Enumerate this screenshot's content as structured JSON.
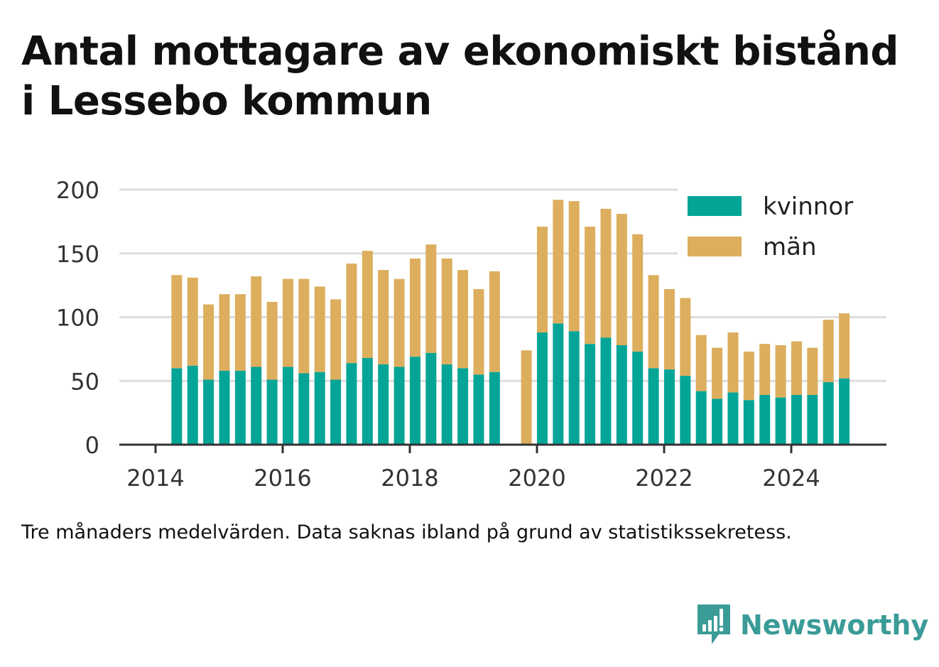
{
  "title_line1": "Antal mottagare av ekonomiskt bistånd",
  "title_line2": "i Lessebo kommun",
  "footnote": "Tre månaders medelvärden. Data saknas ibland på grund av statistikssekretess.",
  "brand": {
    "name": "Newsworthy",
    "icon": "newsworthy-logo-icon"
  },
  "colors": {
    "kvinnor": "#04a597",
    "man": "#dcae5d",
    "grid": "#dddddd",
    "axis": "#333333",
    "brand": "#3a9b97"
  },
  "chart_data": {
    "type": "bar",
    "stacked": true,
    "x_ticks": [
      "2014",
      "2016",
      "2018",
      "2020",
      "2022",
      "2024"
    ],
    "y_ticks": [
      0,
      50,
      100,
      150,
      200
    ],
    "ylim": [
      0,
      200
    ],
    "grid": true,
    "legend_position": "top-right",
    "categories": [
      "2014-05",
      "2014-08",
      "2014-11",
      "2015-02",
      "2015-05",
      "2015-08",
      "2015-11",
      "2016-02",
      "2016-05",
      "2016-08",
      "2016-11",
      "2017-02",
      "2017-05",
      "2017-08",
      "2017-11",
      "2018-02",
      "2018-05",
      "2018-08",
      "2018-11",
      "2019-02",
      "2019-05",
      "2019-08",
      "2019-11",
      "2020-02",
      "2020-05",
      "2020-08",
      "2020-11",
      "2021-02",
      "2021-05",
      "2021-08",
      "2021-11",
      "2022-02",
      "2022-05",
      "2022-08",
      "2022-11",
      "2023-02",
      "2023-05",
      "2023-08",
      "2023-11",
      "2024-02",
      "2024-05",
      "2024-08",
      "2024-11"
    ],
    "series": [
      {
        "name": "kvinnor",
        "values": [
          60,
          62,
          51,
          58,
          58,
          61,
          51,
          61,
          56,
          57,
          51,
          64,
          68,
          63,
          61,
          69,
          72,
          63,
          60,
          55,
          57,
          null,
          0,
          88,
          95,
          89,
          79,
          84,
          78,
          73,
          60,
          59,
          54,
          42,
          36,
          41,
          35,
          39,
          37,
          39,
          39,
          49,
          52
        ]
      },
      {
        "name": "män",
        "values": [
          73,
          69,
          59,
          60,
          60,
          71,
          61,
          69,
          74,
          67,
          63,
          78,
          84,
          74,
          69,
          77,
          85,
          83,
          77,
          67,
          79,
          null,
          74,
          83,
          97,
          102,
          92,
          101,
          103,
          92,
          73,
          63,
          61,
          44,
          40,
          47,
          38,
          40,
          41,
          42,
          37,
          49,
          51
        ]
      }
    ]
  }
}
